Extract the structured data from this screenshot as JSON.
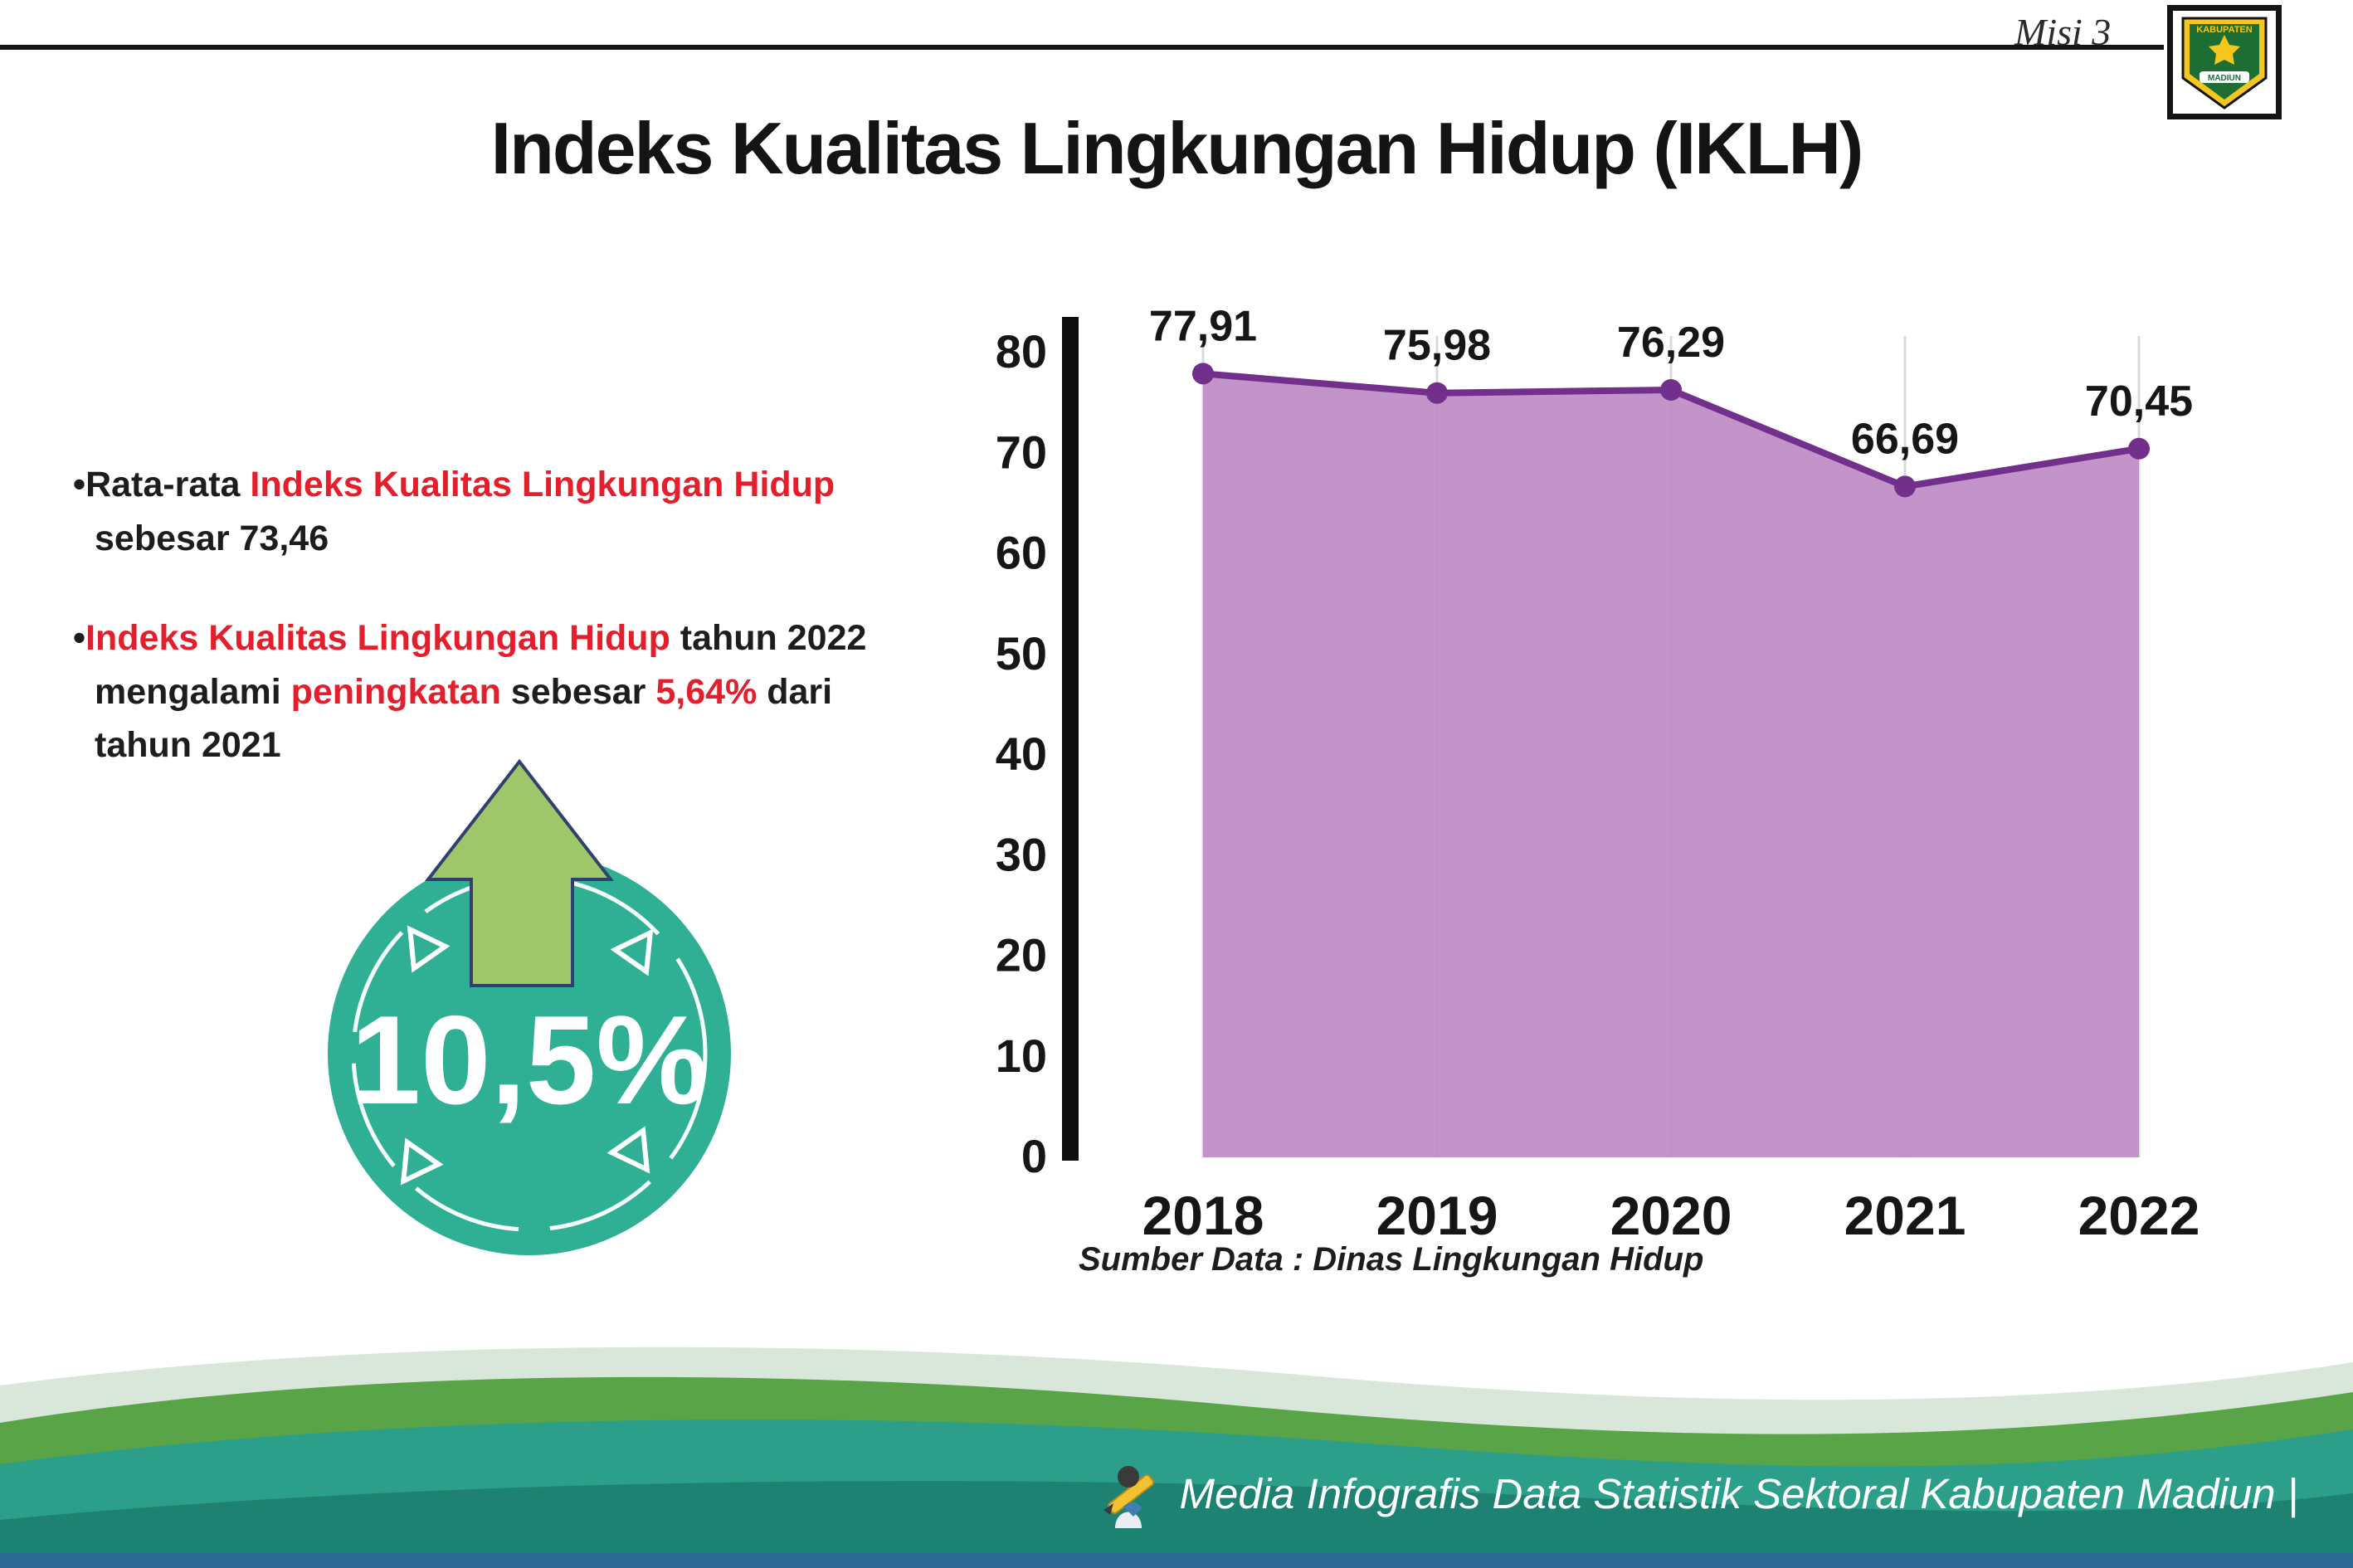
{
  "header": {
    "misi_label": "Misi 3",
    "title": "Indeks Kualitas Lingkungan Hidup (IKLH)",
    "logo": {
      "top_text": "KABUPATEN",
      "bottom_text": "MADIUN"
    }
  },
  "bullets": {
    "marker": "•",
    "bullet1": {
      "seg1": "Rata-rata ",
      "seg2": "Indeks Kualitas Lingkungan Hidup",
      "seg3": " sebesar 73,46"
    },
    "bullet2": {
      "seg1": "Indeks Kualitas Lingkungan Hidup",
      "seg2": " tahun 2022 mengalami ",
      "seg3": "peningkatan",
      "seg4": " sebesar ",
      "seg5": "5,64%",
      "seg6": " dari tahun 2021"
    }
  },
  "badge": {
    "value": "10,5%"
  },
  "chart_data": {
    "type": "area",
    "title": "Indeks Kualitas Lingkungan Hidup (IKLH)",
    "categories": [
      "2018",
      "2019",
      "2020",
      "2021",
      "2022"
    ],
    "values": [
      77.91,
      75.98,
      76.29,
      66.69,
      70.45
    ],
    "value_labels": [
      "77,91",
      "75,98",
      "76,29",
      "66,69",
      "70,45"
    ],
    "ylim": [
      0,
      80
    ],
    "yticks": [
      0,
      10,
      20,
      30,
      40,
      50,
      60,
      70,
      80
    ],
    "grid": "vertical",
    "fill_color": "#bf8ec6",
    "line_color": "#722f8c",
    "source": "Sumber Data : Dinas Lingkungan Hidup"
  },
  "footer": {
    "text": "Media Infografis Data Statistik Sektoral Kabupaten Madiun |"
  }
}
